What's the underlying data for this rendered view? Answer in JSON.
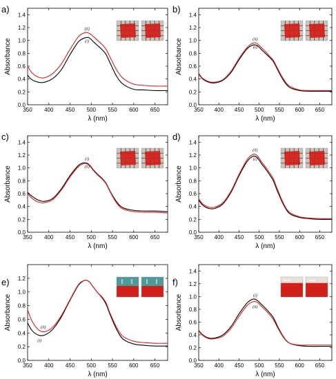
{
  "chart_data": [
    {
      "panel": "a)",
      "type": "line",
      "xlabel": "λ (nm)",
      "ylabel": "Absorbance",
      "xlim": [
        350,
        680
      ],
      "ylim": [
        0.0,
        1.5
      ],
      "xticks": [
        350,
        400,
        450,
        500,
        550,
        600,
        650
      ],
      "yticks": [
        0.0,
        0.2,
        0.4,
        0.6,
        0.8,
        1.0,
        1.2,
        1.4
      ],
      "series": [
        {
          "name": "(i)",
          "color": "#000000",
          "x": [
            350,
            360,
            375,
            390,
            410,
            430,
            450,
            470,
            485,
            495,
            505,
            515,
            525,
            535,
            545,
            560,
            575,
            600,
            625,
            650,
            680
          ],
          "y": [
            0.46,
            0.39,
            0.35,
            0.35,
            0.41,
            0.55,
            0.78,
            0.98,
            1.04,
            1.04,
            0.98,
            0.92,
            0.86,
            0.78,
            0.64,
            0.44,
            0.32,
            0.24,
            0.23,
            0.22,
            0.22
          ]
        },
        {
          "name": "(ii)",
          "color": "#e41a1c",
          "x": [
            350,
            360,
            375,
            390,
            410,
            430,
            450,
            470,
            485,
            495,
            505,
            515,
            525,
            535,
            545,
            560,
            575,
            600,
            625,
            650,
            680
          ],
          "y": [
            0.6,
            0.5,
            0.43,
            0.42,
            0.49,
            0.64,
            0.86,
            1.06,
            1.12,
            1.11,
            1.06,
            1.0,
            0.94,
            0.86,
            0.73,
            0.54,
            0.41,
            0.32,
            0.3,
            0.29,
            0.29
          ]
        }
      ],
      "labels_at": [
        [
          490,
          1.16,
          "(ii)"
        ],
        [
          490,
          0.97,
          "(i)"
        ]
      ]
    },
    {
      "panel": "b)",
      "type": "line",
      "xlabel": "λ (nm)",
      "ylabel": "Absorbance",
      "xlim": [
        350,
        680
      ],
      "ylim": [
        0.0,
        1.5
      ],
      "xticks": [
        350,
        400,
        450,
        500,
        550,
        600,
        650
      ],
      "yticks": [
        0.0,
        0.2,
        0.4,
        0.6,
        0.8,
        1.0,
        1.2,
        1.4
      ],
      "series": [
        {
          "name": "(i)",
          "color": "#000000",
          "x": [
            350,
            360,
            375,
            390,
            410,
            430,
            450,
            470,
            485,
            495,
            505,
            515,
            525,
            535,
            545,
            560,
            575,
            600,
            625,
            650,
            680
          ],
          "y": [
            0.48,
            0.4,
            0.35,
            0.34,
            0.38,
            0.5,
            0.7,
            0.87,
            0.93,
            0.92,
            0.86,
            0.8,
            0.74,
            0.67,
            0.55,
            0.38,
            0.27,
            0.22,
            0.21,
            0.21,
            0.21
          ]
        },
        {
          "name": "(ii)",
          "color": "#e41a1c",
          "x": [
            350,
            360,
            375,
            390,
            410,
            430,
            450,
            470,
            485,
            495,
            505,
            515,
            525,
            535,
            545,
            560,
            575,
            600,
            625,
            650,
            680
          ],
          "y": [
            0.49,
            0.41,
            0.36,
            0.35,
            0.39,
            0.52,
            0.72,
            0.89,
            0.96,
            0.95,
            0.89,
            0.83,
            0.76,
            0.69,
            0.57,
            0.4,
            0.29,
            0.23,
            0.22,
            0.22,
            0.22
          ]
        }
      ],
      "labels_at": [
        [
          490,
          1.0,
          "(ii)"
        ],
        [
          490,
          0.88,
          "(i)"
        ]
      ]
    },
    {
      "panel": "c)",
      "type": "line",
      "xlabel": "λ (nm)",
      "ylabel": "Absorbance",
      "xlim": [
        350,
        680
      ],
      "ylim": [
        0.0,
        1.5
      ],
      "xticks": [
        350,
        400,
        450,
        500,
        550,
        600,
        650
      ],
      "yticks": [
        0.0,
        0.2,
        0.4,
        0.6,
        0.8,
        1.0,
        1.2,
        1.4
      ],
      "series": [
        {
          "name": "(i)",
          "color": "#000000",
          "x": [
            350,
            360,
            375,
            390,
            410,
            430,
            450,
            470,
            485,
            495,
            505,
            515,
            525,
            535,
            545,
            560,
            575,
            600,
            625,
            650,
            680
          ],
          "y": [
            0.62,
            0.56,
            0.5,
            0.48,
            0.53,
            0.68,
            0.88,
            1.04,
            1.08,
            1.05,
            0.97,
            0.9,
            0.84,
            0.76,
            0.63,
            0.47,
            0.38,
            0.34,
            0.33,
            0.33,
            0.32
          ]
        },
        {
          "name": "(ii)",
          "color": "#e41a1c",
          "x": [
            350,
            360,
            375,
            390,
            410,
            430,
            450,
            470,
            485,
            495,
            505,
            515,
            525,
            535,
            545,
            560,
            575,
            600,
            625,
            650,
            680
          ],
          "y": [
            0.6,
            0.53,
            0.47,
            0.46,
            0.51,
            0.66,
            0.86,
            1.02,
            1.07,
            1.04,
            0.96,
            0.89,
            0.83,
            0.75,
            0.62,
            0.45,
            0.36,
            0.32,
            0.31,
            0.31,
            0.3
          ]
        }
      ],
      "labels_at": [
        [
          490,
          1.12,
          "(i)"
        ],
        [
          490,
          1.0,
          "(ii)"
        ]
      ]
    },
    {
      "panel": "d)",
      "type": "line",
      "xlabel": "λ (nm)",
      "ylabel": "Absorbance",
      "xlim": [
        350,
        680
      ],
      "ylim": [
        0.0,
        1.5
      ],
      "xticks": [
        350,
        400,
        450,
        500,
        550,
        600,
        650
      ],
      "yticks": [
        0.0,
        0.2,
        0.4,
        0.6,
        0.8,
        1.0,
        1.2,
        1.4
      ],
      "series": [
        {
          "name": "(i)",
          "color": "#000000",
          "x": [
            350,
            360,
            375,
            390,
            410,
            430,
            450,
            470,
            485,
            495,
            505,
            515,
            525,
            535,
            545,
            560,
            575,
            600,
            625,
            650,
            680
          ],
          "y": [
            0.5,
            0.42,
            0.37,
            0.37,
            0.44,
            0.62,
            0.88,
            1.1,
            1.18,
            1.16,
            1.07,
            0.99,
            0.9,
            0.8,
            0.64,
            0.43,
            0.29,
            0.23,
            0.21,
            0.2,
            0.2
          ]
        },
        {
          "name": "(ii)",
          "color": "#e41a1c",
          "x": [
            350,
            360,
            375,
            390,
            410,
            430,
            450,
            470,
            485,
            495,
            505,
            515,
            525,
            535,
            545,
            560,
            575,
            600,
            625,
            650,
            680
          ],
          "y": [
            0.52,
            0.44,
            0.39,
            0.39,
            0.46,
            0.64,
            0.9,
            1.13,
            1.21,
            1.19,
            1.1,
            1.02,
            0.93,
            0.83,
            0.67,
            0.45,
            0.31,
            0.24,
            0.22,
            0.21,
            0.21
          ]
        }
      ],
      "labels_at": [
        [
          490,
          1.26,
          "(ii)"
        ],
        [
          490,
          1.12,
          "(i)"
        ]
      ]
    },
    {
      "panel": "e)",
      "type": "line",
      "xlabel": "λ (nm)",
      "ylabel": "Absorbance",
      "xlim": [
        350,
        680
      ],
      "ylim": [
        0.0,
        1.4
      ],
      "xticks": [
        350,
        400,
        450,
        500,
        550,
        600,
        650
      ],
      "yticks": [
        0.0,
        0.2,
        0.4,
        0.6,
        0.8,
        1.0,
        1.2
      ],
      "series": [
        {
          "name": "(i)",
          "color": "#000000",
          "x": [
            350,
            360,
            375,
            390,
            410,
            430,
            450,
            470,
            485,
            495,
            505,
            515,
            525,
            535,
            545,
            560,
            575,
            600,
            625,
            650,
            680
          ],
          "y": [
            0.55,
            0.44,
            0.37,
            0.37,
            0.46,
            0.64,
            0.88,
            1.1,
            1.17,
            1.15,
            1.07,
            0.99,
            0.92,
            0.82,
            0.66,
            0.45,
            0.31,
            0.24,
            0.22,
            0.21,
            0.21
          ]
        },
        {
          "name": "(ii)",
          "color": "#e41a1c",
          "x": [
            350,
            360,
            375,
            390,
            410,
            430,
            450,
            470,
            485,
            495,
            505,
            515,
            525,
            535,
            545,
            560,
            575,
            600,
            625,
            650,
            680
          ],
          "y": [
            0.74,
            0.58,
            0.45,
            0.42,
            0.49,
            0.66,
            0.89,
            1.11,
            1.17,
            1.15,
            1.07,
            0.99,
            0.93,
            0.84,
            0.68,
            0.48,
            0.35,
            0.28,
            0.26,
            0.25,
            0.25
          ]
        }
      ],
      "labels_at": [
        [
          387,
          0.47,
          "(ii)"
        ],
        [
          378,
          0.27,
          "(i)"
        ]
      ]
    },
    {
      "panel": "f)",
      "type": "line",
      "xlabel": "λ (nm)",
      "ylabel": "Absorbance",
      "xlim": [
        350,
        680
      ],
      "ylim": [
        0.0,
        1.5
      ],
      "xticks": [
        350,
        400,
        450,
        500,
        550,
        600,
        650
      ],
      "yticks": [
        0.0,
        0.2,
        0.4,
        0.6,
        0.8,
        1.0,
        1.2,
        1.4
      ],
      "series": [
        {
          "name": "(i)",
          "color": "#000000",
          "x": [
            350,
            360,
            375,
            390,
            410,
            430,
            450,
            470,
            485,
            495,
            505,
            515,
            525,
            535,
            545,
            560,
            575,
            600,
            625,
            650,
            680
          ],
          "y": [
            0.47,
            0.4,
            0.35,
            0.35,
            0.4,
            0.53,
            0.73,
            0.9,
            0.96,
            0.94,
            0.88,
            0.82,
            0.75,
            0.67,
            0.54,
            0.37,
            0.27,
            0.23,
            0.22,
            0.22,
            0.22
          ]
        },
        {
          "name": "(ii)",
          "color": "#e41a1c",
          "x": [
            350,
            360,
            375,
            390,
            410,
            430,
            450,
            470,
            485,
            495,
            505,
            515,
            525,
            535,
            545,
            560,
            575,
            600,
            625,
            650,
            680
          ],
          "y": [
            0.46,
            0.39,
            0.34,
            0.34,
            0.38,
            0.5,
            0.69,
            0.86,
            0.92,
            0.91,
            0.85,
            0.79,
            0.72,
            0.64,
            0.52,
            0.36,
            0.27,
            0.24,
            0.24,
            0.24,
            0.24
          ]
        }
      ],
      "labels_at": [
        [
          490,
          1.0,
          "(i)"
        ],
        [
          490,
          0.82,
          "(ii)"
        ]
      ]
    }
  ],
  "photos": {
    "tile_color": "#d21f1a",
    "panel_photo_style": [
      "grid",
      "grid",
      "grid",
      "grid",
      "teal",
      "plain"
    ]
  }
}
